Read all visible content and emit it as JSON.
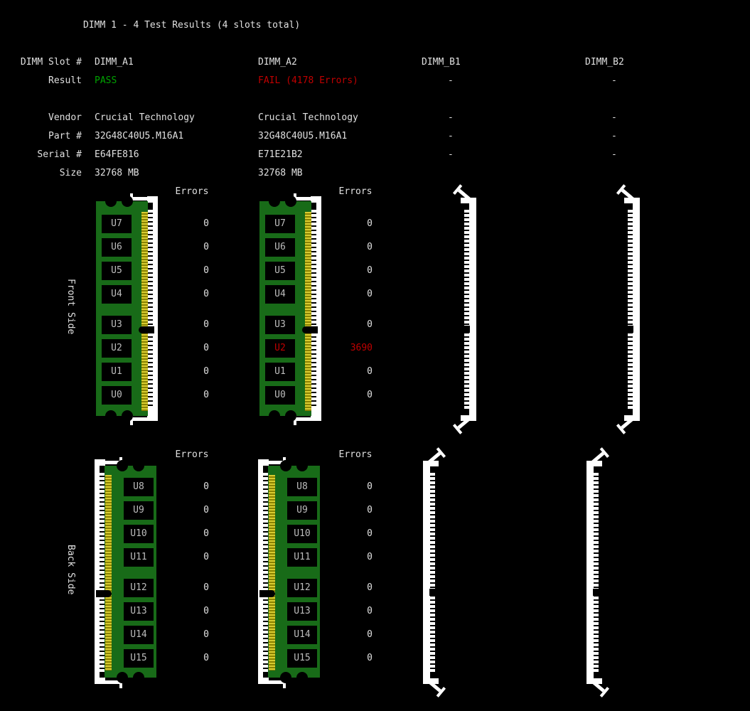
{
  "title": "DIMM 1 - 4 Test Results (4 slots total)",
  "colors": {
    "background": "#000000",
    "text": "#e0e0e0",
    "pass": "#00a300",
    "fail": "#c00000",
    "pcb_green": "#186b18",
    "gold_light": "#d8cc30",
    "gold_dark": "#8a8200",
    "chip_label": "#bdbdbd",
    "slot_white": "#ffffff"
  },
  "info": {
    "rows": [
      {
        "label": "DIMM Slot #",
        "cells": [
          {
            "text": "DIMM_A1"
          },
          {
            "text": "DIMM_A2"
          },
          {
            "text": "DIMM_B1"
          },
          {
            "text": "DIMM_B2"
          }
        ]
      },
      {
        "label": "Result",
        "cells": [
          {
            "text": "PASS",
            "status": "pass"
          },
          {
            "text": "FAIL (4178 Errors)",
            "status": "fail"
          },
          {
            "text": "-",
            "dash": true
          },
          {
            "text": "-",
            "dash": true
          }
        ]
      },
      {
        "label": "Vendor",
        "cells": [
          {
            "text": "Crucial Technology"
          },
          {
            "text": "Crucial Technology"
          },
          {
            "text": "-",
            "dash": true
          },
          {
            "text": "-",
            "dash": true
          }
        ]
      },
      {
        "label": "Part #",
        "cells": [
          {
            "text": "32G48C40U5.M16A1"
          },
          {
            "text": "32G48C40U5.M16A1"
          },
          {
            "text": "-",
            "dash": true
          },
          {
            "text": "-",
            "dash": true
          }
        ]
      },
      {
        "label": "Serial #",
        "cells": [
          {
            "text": "E64FE816"
          },
          {
            "text": "E71E21B2"
          },
          {
            "text": "-",
            "dash": true
          },
          {
            "text": "-",
            "dash": true
          }
        ]
      },
      {
        "label": "Size",
        "cells": [
          {
            "text": "32768 MB"
          },
          {
            "text": "32768 MB"
          },
          null,
          null
        ]
      }
    ]
  },
  "sections": [
    {
      "label": "Front Side",
      "errors_header": "Errors",
      "slots": [
        {
          "id": "DIMM_A1",
          "populated": true,
          "chips": [
            {
              "label": "U7",
              "errors": "0"
            },
            {
              "label": "U6",
              "errors": "0"
            },
            {
              "label": "U5",
              "errors": "0"
            },
            {
              "label": "U4",
              "errors": "0"
            },
            {
              "label": "U3",
              "errors": "0"
            },
            {
              "label": "U2",
              "errors": "0"
            },
            {
              "label": "U1",
              "errors": "0"
            },
            {
              "label": "U0",
              "errors": "0"
            }
          ]
        },
        {
          "id": "DIMM_A2",
          "populated": true,
          "chips": [
            {
              "label": "U7",
              "errors": "0"
            },
            {
              "label": "U6",
              "errors": "0"
            },
            {
              "label": "U5",
              "errors": "0"
            },
            {
              "label": "U4",
              "errors": "0"
            },
            {
              "label": "U3",
              "errors": "0"
            },
            {
              "label": "U2",
              "errors": "3690",
              "status": "fail"
            },
            {
              "label": "U1",
              "errors": "0"
            },
            {
              "label": "U0",
              "errors": "0"
            }
          ]
        },
        {
          "id": "DIMM_B1",
          "populated": false
        },
        {
          "id": "DIMM_B2",
          "populated": false
        }
      ]
    },
    {
      "label": "Back Side",
      "errors_header": "Errors",
      "slots": [
        {
          "id": "DIMM_A1",
          "populated": true,
          "chips": [
            {
              "label": "U8",
              "errors": "0"
            },
            {
              "label": "U9",
              "errors": "0"
            },
            {
              "label": "U10",
              "errors": "0"
            },
            {
              "label": "U11",
              "errors": "0"
            },
            {
              "label": "U12",
              "errors": "0"
            },
            {
              "label": "U13",
              "errors": "0"
            },
            {
              "label": "U14",
              "errors": "0"
            },
            {
              "label": "U15",
              "errors": "0"
            }
          ]
        },
        {
          "id": "DIMM_A2",
          "populated": true,
          "chips": [
            {
              "label": "U8",
              "errors": "0"
            },
            {
              "label": "U9",
              "errors": "0"
            },
            {
              "label": "U10",
              "errors": "0"
            },
            {
              "label": "U11",
              "errors": "0"
            },
            {
              "label": "U12",
              "errors": "0"
            },
            {
              "label": "U13",
              "errors": "0"
            },
            {
              "label": "U14",
              "errors": "0"
            },
            {
              "label": "U15",
              "errors": "0"
            }
          ]
        },
        {
          "id": "DIMM_B1",
          "populated": false
        },
        {
          "id": "DIMM_B2",
          "populated": false
        }
      ]
    }
  ]
}
